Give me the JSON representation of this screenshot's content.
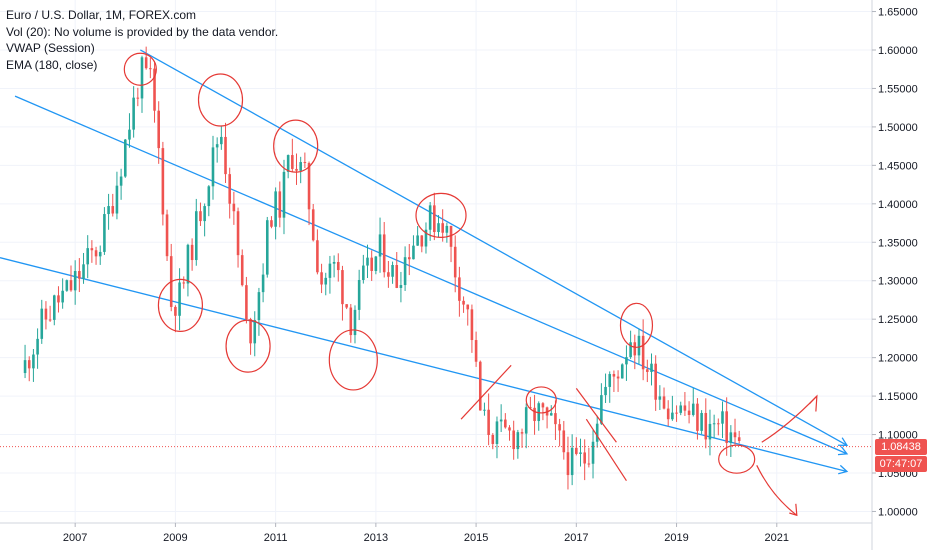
{
  "legend": {
    "title": "Euro / U.S. Dollar, 1M, FOREX.com",
    "vol": "Vol (20): No volume is provided by the data vendor.",
    "vwap": "VWAP (Session)",
    "ema": "EMA (180, close)"
  },
  "price_label": {
    "value": "1.08438",
    "countdown": "07:47:07"
  },
  "colors": {
    "up": "#26a69a",
    "down": "#ef5350",
    "trendline": "#2196f3",
    "annotation": "#e53935",
    "grid": "#f0f3fa",
    "axis_text": "#131722"
  },
  "chart_data": {
    "type": "candlestick",
    "title": "Euro / U.S. Dollar, 1M, FOREX.com",
    "y_ticks": [
      "1.65000",
      "1.60000",
      "1.55000",
      "1.50000",
      "1.45000",
      "1.40000",
      "1.35000",
      "1.30000",
      "1.25000",
      "1.20000",
      "1.15000",
      "1.10000",
      "1.05000",
      "1.00000"
    ],
    "x_ticks": [
      "2007",
      "2009",
      "2011",
      "2013",
      "2015",
      "2017",
      "2019",
      "2021"
    ],
    "ylim": [
      0.985,
      1.665
    ],
    "xlim": [
      2005.5,
      2022.9
    ],
    "grid": true,
    "last_price": 1.08438,
    "anchors": [
      [
        2006.0,
        1.19
      ],
      [
        2006.3,
        1.24
      ],
      [
        2006.6,
        1.27
      ],
      [
        2006.9,
        1.29
      ],
      [
        2007.2,
        1.32
      ],
      [
        2007.5,
        1.35
      ],
      [
        2007.8,
        1.42
      ],
      [
        2008.0,
        1.48
      ],
      [
        2008.3,
        1.57
      ],
      [
        2008.5,
        1.56
      ],
      [
        2008.7,
        1.45
      ],
      [
        2008.9,
        1.27
      ],
      [
        2009.1,
        1.28
      ],
      [
        2009.3,
        1.34
      ],
      [
        2009.6,
        1.42
      ],
      [
        2009.9,
        1.5
      ],
      [
        2010.2,
        1.36
      ],
      [
        2010.45,
        1.22
      ],
      [
        2010.7,
        1.3
      ],
      [
        2010.9,
        1.39
      ],
      [
        2011.1,
        1.4
      ],
      [
        2011.3,
        1.47
      ],
      [
        2011.6,
        1.43
      ],
      [
        2011.9,
        1.3
      ],
      [
        2012.2,
        1.32
      ],
      [
        2012.5,
        1.25
      ],
      [
        2012.75,
        1.3
      ],
      [
        2013.1,
        1.34
      ],
      [
        2013.4,
        1.3
      ],
      [
        2013.7,
        1.35
      ],
      [
        2014.1,
        1.38
      ],
      [
        2014.35,
        1.38
      ],
      [
        2014.6,
        1.31
      ],
      [
        2014.9,
        1.24
      ],
      [
        2015.1,
        1.12
      ],
      [
        2015.4,
        1.1
      ],
      [
        2015.8,
        1.1
      ],
      [
        2016.2,
        1.13
      ],
      [
        2016.5,
        1.11
      ],
      [
        2016.9,
        1.06
      ],
      [
        2017.2,
        1.07
      ],
      [
        2017.5,
        1.15
      ],
      [
        2017.8,
        1.18
      ],
      [
        2018.1,
        1.23
      ],
      [
        2018.4,
        1.19
      ],
      [
        2018.8,
        1.14
      ],
      [
        2019.2,
        1.13
      ],
      [
        2019.6,
        1.11
      ],
      [
        2019.9,
        1.11
      ],
      [
        2020.1,
        1.1
      ],
      [
        2020.25,
        1.084
      ]
    ],
    "trendlines": [
      {
        "from": [
          2008.3,
          1.6
        ],
        "to": [
          2022.4,
          1.086
        ]
      },
      {
        "from": [
          2005.8,
          1.54
        ],
        "to": [
          2022.4,
          1.075
        ]
      },
      {
        "from": [
          2005.5,
          1.33
        ],
        "to": [
          2022.4,
          1.052
        ]
      }
    ]
  }
}
